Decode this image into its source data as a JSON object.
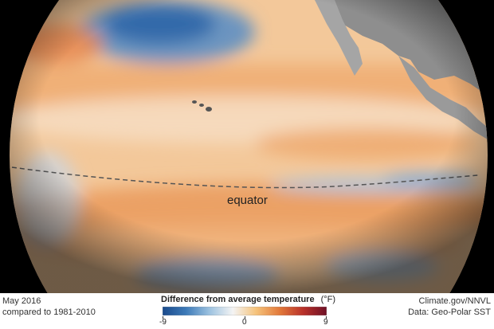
{
  "map": {
    "equator_label": "equator"
  },
  "footer": {
    "date_line1": "May 2016",
    "date_line2": "compared to 1981-2010",
    "credit_line1": "Climate.gov/NNVL",
    "credit_line2": "Data: Geo-Polar SST"
  },
  "legend": {
    "title": "Difference from average temperature",
    "unit": "(°F)",
    "min_label": "-9",
    "mid_label": "0",
    "max_label": "9",
    "colors": [
      "#1a4a8c",
      "#3d7ab8",
      "#9cc2e0",
      "#f4f4f4",
      "#f5c27a",
      "#e2793a",
      "#b8312a",
      "#6e1026"
    ]
  }
}
